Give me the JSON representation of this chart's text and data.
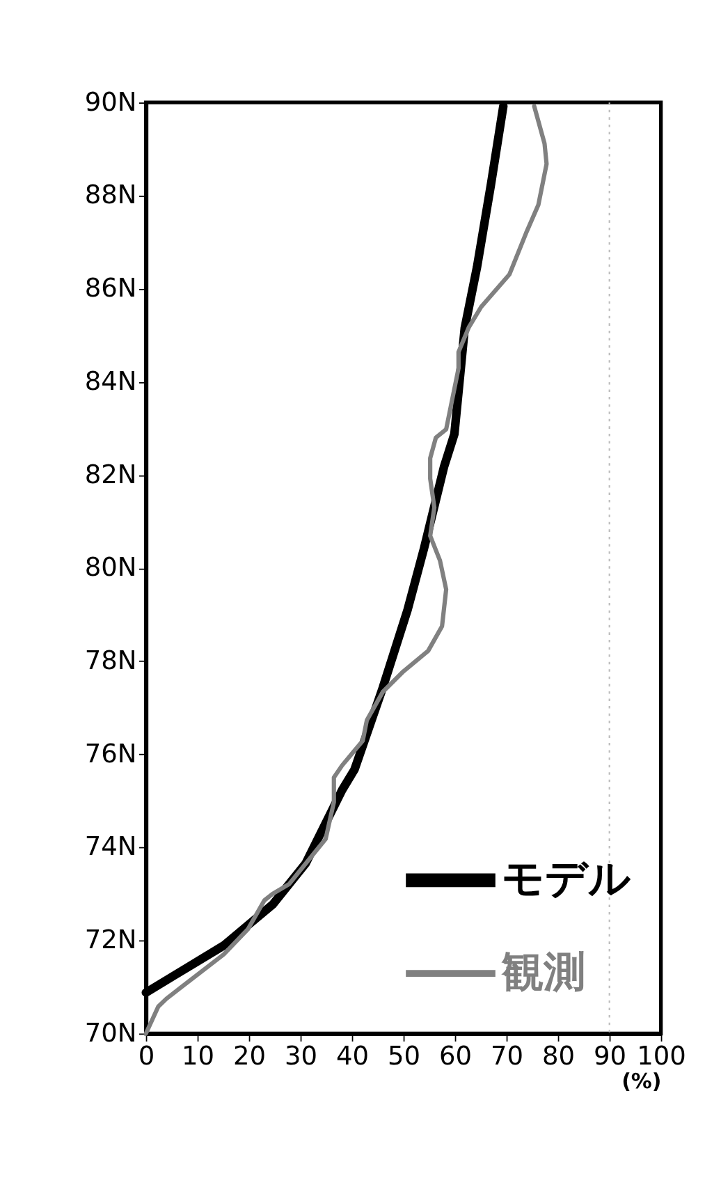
{
  "chart_data": {
    "type": "line",
    "xlabel": "(%)",
    "xlim": [
      0,
      100
    ],
    "xticks": [
      0,
      10,
      20,
      30,
      40,
      50,
      60,
      70,
      80,
      90,
      100
    ],
    "ylim": [
      70,
      90
    ],
    "yticks": [
      {
        "value": 70,
        "label": "70N"
      },
      {
        "value": 72,
        "label": "72N"
      },
      {
        "value": 74,
        "label": "74N"
      },
      {
        "value": 76,
        "label": "76N"
      },
      {
        "value": 78,
        "label": "78N"
      },
      {
        "value": 80,
        "label": "80N"
      },
      {
        "value": 82,
        "label": "82N"
      },
      {
        "value": 84,
        "label": "84N"
      },
      {
        "value": 86,
        "label": "86N"
      },
      {
        "value": 88,
        "label": "88N"
      },
      {
        "value": 90,
        "label": "90N"
      }
    ],
    "series": [
      {
        "name": "モデル",
        "color": "#000000",
        "x": [
          0,
          15.1,
          24.6,
          31,
          38.1,
          40.5,
          46,
          50.8,
          54,
          57.9,
          59.9,
          61.9,
          64.3,
          67,
          69.4
        ],
        "values": [
          70.88,
          71.89,
          72.77,
          73.65,
          75.23,
          75.67,
          77.43,
          79.1,
          80.42,
          82.18,
          82.88,
          85.15,
          86.47,
          88.24,
          89.92
        ]
      },
      {
        "name": "観測",
        "color": "#808080",
        "x": [
          0,
          2.4,
          4,
          15.1,
          19.8,
          23,
          24.6,
          27.8,
          34.9,
          36.5,
          36.5,
          38.1,
          42.1,
          42.9,
          46,
          50,
          54.8,
          57.5,
          58.3,
          57.1,
          55.2,
          56,
          55.2,
          55.2,
          56.3,
          58.3,
          60.7,
          60.7,
          62.7,
          65.1,
          70.6,
          73.8,
          76.2,
          77.8,
          77.4,
          75.4
        ],
        "values": [
          70.0,
          70.58,
          70.75,
          71.7,
          72.24,
          72.86,
          73.0,
          73.21,
          74.18,
          74.97,
          75.5,
          75.76,
          76.29,
          76.73,
          77.34,
          77.78,
          78.22,
          78.75,
          79.54,
          80.16,
          80.69,
          81.3,
          81.92,
          82.36,
          82.8,
          82.98,
          84.29,
          84.64,
          85.17,
          85.61,
          86.31,
          87.19,
          87.8,
          88.68,
          89.12,
          89.92
        ]
      }
    ],
    "ref_lines": [
      {
        "axis": "x",
        "value": 90,
        "color": "#bbbbbb",
        "line_style": "dotted"
      }
    ],
    "legend": "bottom right",
    "grid": false,
    "marker": "none",
    "line_style": "solid"
  }
}
